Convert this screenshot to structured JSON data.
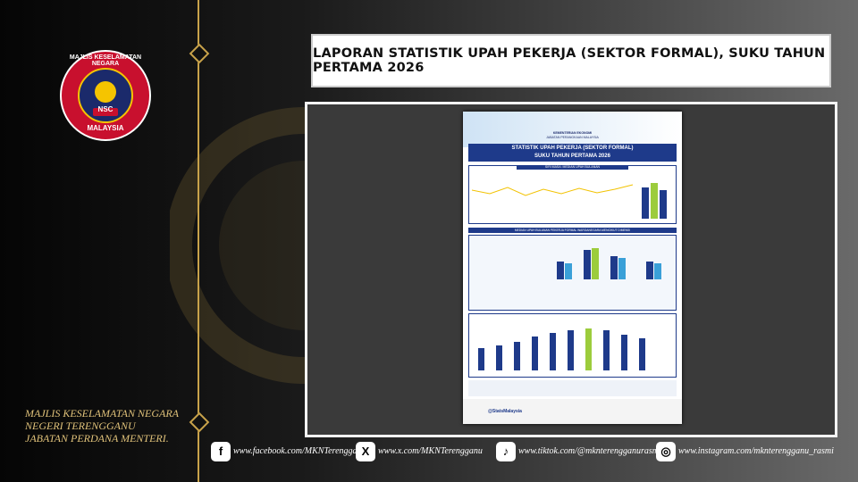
{
  "logo": {
    "top": "MAJLIS KESELAMATAN NEGARA",
    "center": "NSC",
    "bottom": "MALAYSIA"
  },
  "footer_left": [
    "MAJLIS KESELAMATAN NEGARA",
    "NEGERI TERENGGANU",
    "JABATAN PERDANA MENTERI."
  ],
  "header": {
    "title": "LAPORAN STATISTIK UPAH PEKERJA (SEKTOR FORMAL), SUKU TAHUN PERTAMA 2026"
  },
  "poster": {
    "ministry": "KEMENTERIAN EKONOMI",
    "department": "JABATAN PERANGKAAN MALAYSIA",
    "title": "STATISTIK UPAH PEKERJA (SEKTOR FORMAL)",
    "subtitle": "SUKU TAHUN PERTAMA 2026",
    "section1": "SIRI MASA: MEDIAN UPAH BULANAN",
    "section2": "MEDIAN UPAH BULANAN PEKERJA FORMAL WARGANEGARA MENGIKUT DIMENSI",
    "handle": "@StatsMalaysia"
  },
  "social": [
    "www.facebook.com/MKNTerengganu",
    "www.x.com/MKNTerengganu",
    "www.tiktok.com/@mknterengganurasmi",
    "www.instagram.com/mknterengganu_rasmi"
  ]
}
